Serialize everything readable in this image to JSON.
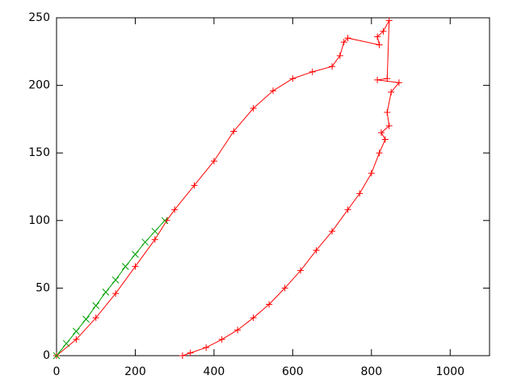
{
  "chart_data": {
    "type": "line",
    "xlim": [
      0,
      1100
    ],
    "xticks": [
      0,
      200,
      400,
      600,
      800,
      1000
    ],
    "ylim": [
      0,
      250
    ],
    "yticks": [
      0,
      50,
      100,
      150,
      200,
      250
    ],
    "grid": false,
    "series": [
      {
        "color": "#ff0000",
        "marker": "+",
        "x": [
          0,
          50,
          100,
          150,
          200,
          250,
          280,
          300,
          350,
          400,
          450,
          500,
          550,
          600,
          650,
          700,
          720,
          730,
          740,
          820,
          815,
          830,
          845,
          840,
          815,
          870,
          850,
          840,
          845,
          825,
          835,
          820,
          800,
          770,
          740,
          700,
          660,
          620,
          580,
          540,
          500,
          460,
          420,
          380,
          340,
          320
        ],
        "values": [
          0,
          12,
          28,
          46,
          66,
          86,
          100,
          108,
          126,
          144,
          166,
          183,
          196,
          205,
          210,
          214,
          222,
          232,
          235,
          230,
          236,
          240,
          248,
          205,
          204,
          202,
          195,
          180,
          170,
          165,
          160,
          150,
          135,
          120,
          108,
          92,
          78,
          63,
          50,
          38,
          28,
          19,
          12,
          6,
          2,
          0
        ]
      },
      {
        "color": "#00a000",
        "marker": "x",
        "x": [
          0,
          25,
          50,
          75,
          100,
          125,
          150,
          175,
          200,
          225,
          250,
          275
        ],
        "values": [
          0,
          9,
          18,
          27,
          37,
          47,
          56,
          66,
          75,
          84,
          92,
          100
        ]
      }
    ]
  }
}
